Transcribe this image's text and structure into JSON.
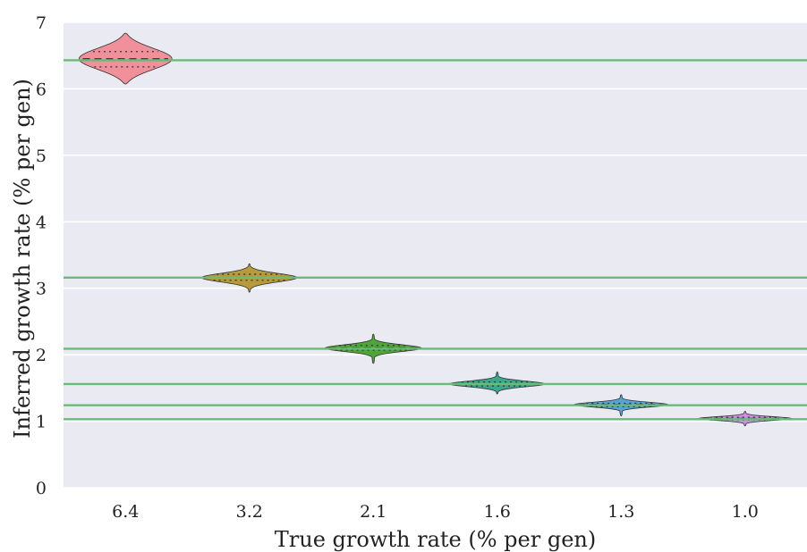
{
  "chart_data": {
    "type": "violin",
    "xlabel": "True growth rate (% per gen)",
    "ylabel": "Inferred growth rate (% per gen)",
    "ylim": [
      0,
      7
    ],
    "yticks": [
      "0",
      "1",
      "2",
      "3",
      "4",
      "5",
      "6",
      "7"
    ],
    "categories": [
      "6.4",
      "3.2",
      "2.1",
      "1.6",
      "1.3",
      "1.0"
    ],
    "true_values": [
      6.43,
      3.16,
      2.09,
      1.56,
      1.24,
      1.03
    ],
    "violins": [
      {
        "category": "6.4",
        "color": "#f0909a",
        "min": 6.07,
        "q1": 6.33,
        "median": 6.45,
        "q3": 6.56,
        "max": 6.84,
        "half_width": 0.75
      },
      {
        "category": "3.2",
        "color": "#b89a3c",
        "min": 2.94,
        "q1": 3.12,
        "median": 3.16,
        "q3": 3.21,
        "max": 3.37,
        "half_width": 0.77
      },
      {
        "category": "2.1",
        "color": "#4ea63a",
        "min": 1.87,
        "q1": 2.07,
        "median": 2.1,
        "q3": 2.14,
        "max": 2.31,
        "half_width": 0.78
      },
      {
        "category": "1.6",
        "color": "#3ca890",
        "min": 1.41,
        "q1": 1.53,
        "median": 1.56,
        "q3": 1.59,
        "max": 1.74,
        "half_width": 0.77
      },
      {
        "category": "1.3",
        "color": "#57a3d8",
        "min": 1.08,
        "q1": 1.22,
        "median": 1.25,
        "q3": 1.27,
        "max": 1.4,
        "half_width": 0.76
      },
      {
        "category": "1.0",
        "color": "#d38ce0",
        "min": 0.93,
        "q1": 1.02,
        "median": 1.04,
        "q3": 1.06,
        "max": 1.15,
        "half_width": 0.75
      }
    ],
    "colors": {
      "plot_background": "#eaeaf2",
      "grid": "#ffffff",
      "reference_line": "#6aba78"
    },
    "grid": true,
    "legend": "none"
  }
}
